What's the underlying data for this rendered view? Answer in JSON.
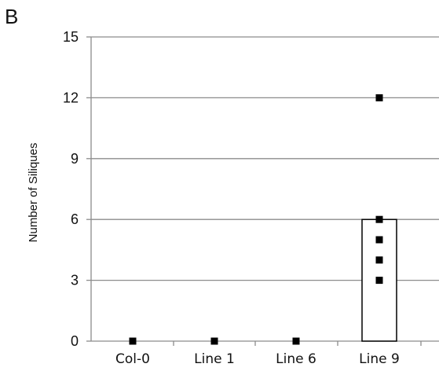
{
  "panel_label": "B",
  "chart_data": {
    "type": "bar",
    "categories": [
      "Col-0",
      "Line 1",
      "Line 6",
      "Line 9"
    ],
    "values": [
      0,
      0,
      0,
      6
    ],
    "points": [
      {
        "category": "Col-0",
        "y": 0
      },
      {
        "category": "Line 1",
        "y": 0
      },
      {
        "category": "Line 6",
        "y": 0
      },
      {
        "category": "Line 9",
        "y": 12
      },
      {
        "category": "Line 9",
        "y": 6
      },
      {
        "category": "Line 9",
        "y": 5
      },
      {
        "category": "Line 9",
        "y": 4
      },
      {
        "category": "Line 9",
        "y": 3
      }
    ],
    "title": "",
    "xlabel": "",
    "ylabel": "Number of Siliques",
    "ylim": [
      0,
      15
    ],
    "yticks": [
      0,
      3,
      6,
      9,
      12,
      15
    ],
    "grid": true,
    "colors": {
      "bar_fill": "#ffffff",
      "bar_stroke": "#000000",
      "gridline": "#8c8c8c",
      "axis": "#8c8c8c",
      "point": "#000000"
    }
  }
}
